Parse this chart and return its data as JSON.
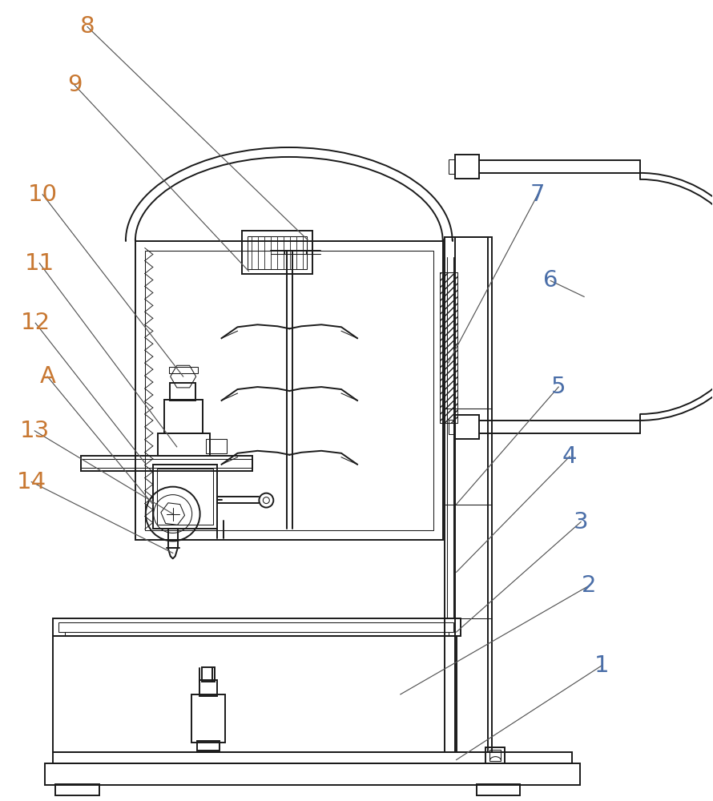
{
  "bg_color": "#ffffff",
  "lc": "#1a1a1a",
  "oc": "#c87832",
  "bc": "#4a6ea8",
  "figsize": [
    8.9,
    10.0
  ],
  "dpi": 100,
  "lw": 1.4,
  "lwt": 0.75,
  "lfs": 21
}
